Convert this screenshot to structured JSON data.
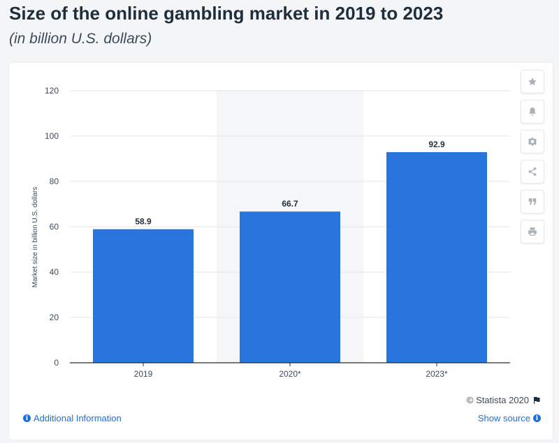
{
  "header": {
    "title": "Size of the online gambling market in 2019 to 2023",
    "subtitle": "(in billion U.S. dollars)"
  },
  "chart_data": {
    "type": "bar",
    "categories": [
      "2019",
      "2020*",
      "2023*"
    ],
    "values": [
      58.9,
      66.7,
      92.9
    ],
    "value_labels": [
      "58.9",
      "66.7",
      "92.9"
    ],
    "ylabel": "Market size in billion U.S. dollars",
    "xlabel": "",
    "ylim": [
      0,
      120
    ],
    "yticks": [
      0,
      20,
      40,
      60,
      80,
      100,
      120
    ],
    "highlighted_category": "2020*",
    "grid": true,
    "bar_color": "#2876dd",
    "highlight_band_color": "#f5f6f7"
  },
  "toolbar": {
    "buttons": [
      {
        "name": "favorite",
        "icon": "star-icon"
      },
      {
        "name": "notification",
        "icon": "bell-icon"
      },
      {
        "name": "settings",
        "icon": "gear-icon"
      },
      {
        "name": "share",
        "icon": "share-icon"
      },
      {
        "name": "cite",
        "icon": "quote-icon"
      },
      {
        "name": "print",
        "icon": "print-icon"
      }
    ]
  },
  "footer": {
    "copyright": "© Statista 2020",
    "additional_info": "Additional Information",
    "show_source": "Show source"
  },
  "colors": {
    "accent": "#1d6fd6",
    "icon_gray": "#a9b0b8"
  }
}
